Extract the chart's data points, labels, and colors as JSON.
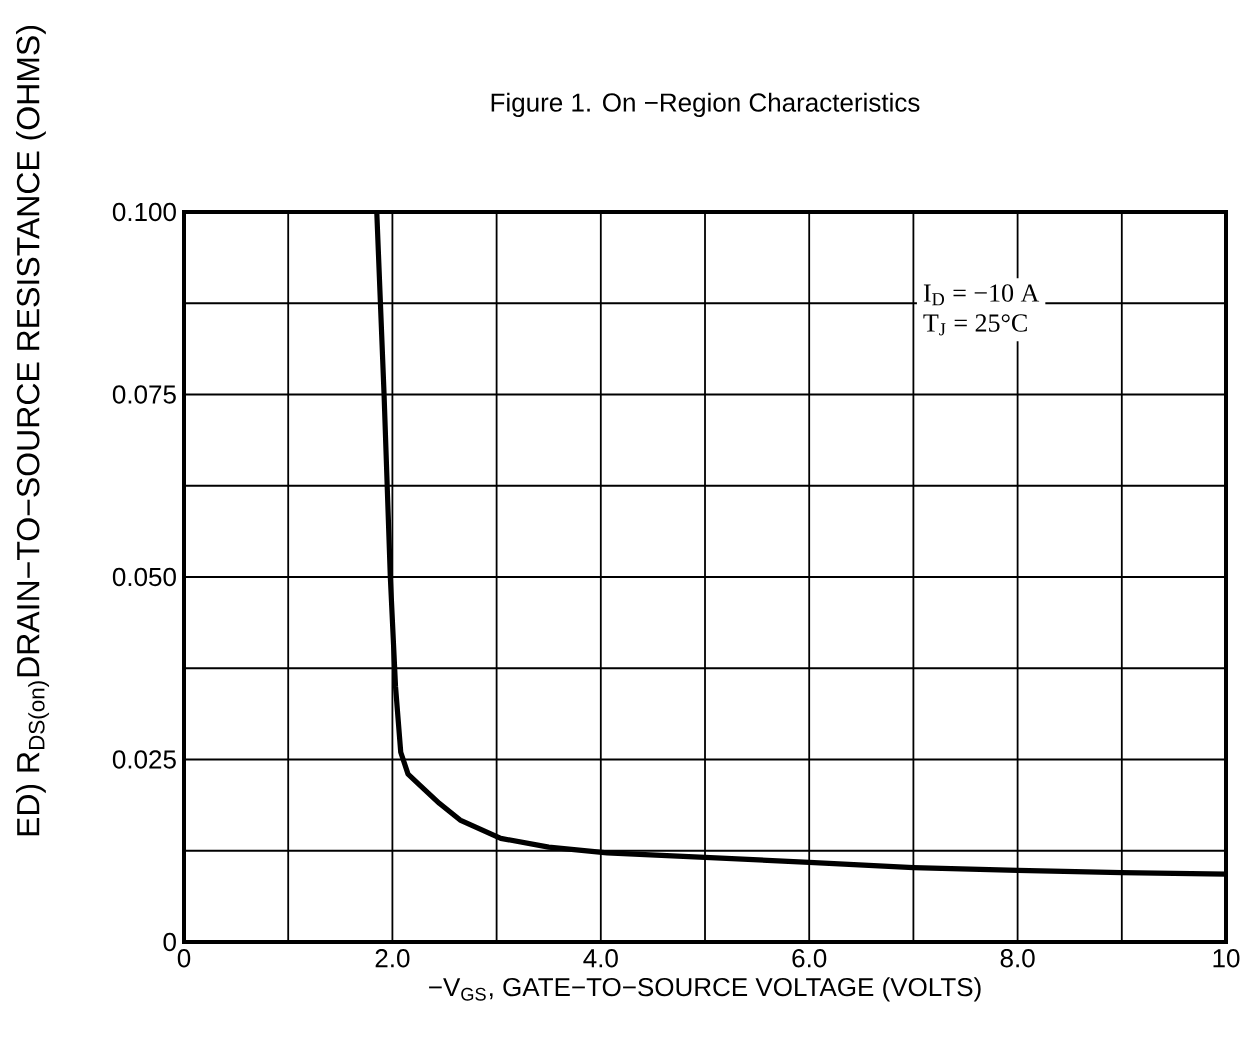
{
  "chart_data": {
    "type": "line",
    "title": "Figure 1. On −Region Characteristics",
    "xlabel": "−V$_{GS}$, GATE−TO−SOURCE VOLTAGE (VOLTS)",
    "ylabel": "ED) R$_{DS(on)}$DRAIN−TO−SOURCE RESISTANCE (OHMS)",
    "annotations": [
      "I$_{D}$ = −10 A",
      "T$_{J}$ = 25°C"
    ],
    "xlim": [
      0,
      10
    ],
    "ylim": [
      0,
      0.1
    ],
    "xticks": [
      0,
      {
        "value": 1,
        "label": null
      },
      {
        "value": 2,
        "label": "2.0"
      },
      {
        "value": 3,
        "label": null
      },
      {
        "value": 4,
        "label": "4.0"
      },
      {
        "value": 5,
        "label": null
      },
      {
        "value": 6,
        "label": "6.0"
      },
      {
        "value": 7,
        "label": null
      },
      {
        "value": 8,
        "label": "8.0"
      },
      {
        "value": 9,
        "label": null
      },
      10
    ],
    "yticks": [
      0,
      {
        "value": 0.0125,
        "label": null
      },
      0.025,
      {
        "value": 0.0375,
        "label": null
      },
      {
        "value": 0.05,
        "label": "0.050"
      },
      {
        "value": 0.0625,
        "label": null
      },
      0.075,
      {
        "value": 0.0875,
        "label": null
      },
      {
        "value": 0.1,
        "label": "0.100"
      }
    ],
    "grid": true,
    "marker": "none",
    "line_style": "solid",
    "series": [
      {
        "color": "#000000",
        "x": [
          1.85,
          1.92,
          1.98,
          2.03,
          2.08,
          2.15,
          2.27,
          2.45,
          2.65,
          3.04,
          3.5,
          4.06,
          5,
          6,
          7,
          8,
          9,
          10
        ],
        "values": [
          0.1,
          0.075,
          0.05,
          0.035,
          0.026,
          0.023,
          0.0214,
          0.019,
          0.0167,
          0.0142,
          0.013,
          0.0122,
          0.0116,
          0.0109,
          0.0102,
          0.0098,
          0.0095,
          0.0093
        ]
      }
    ]
  }
}
